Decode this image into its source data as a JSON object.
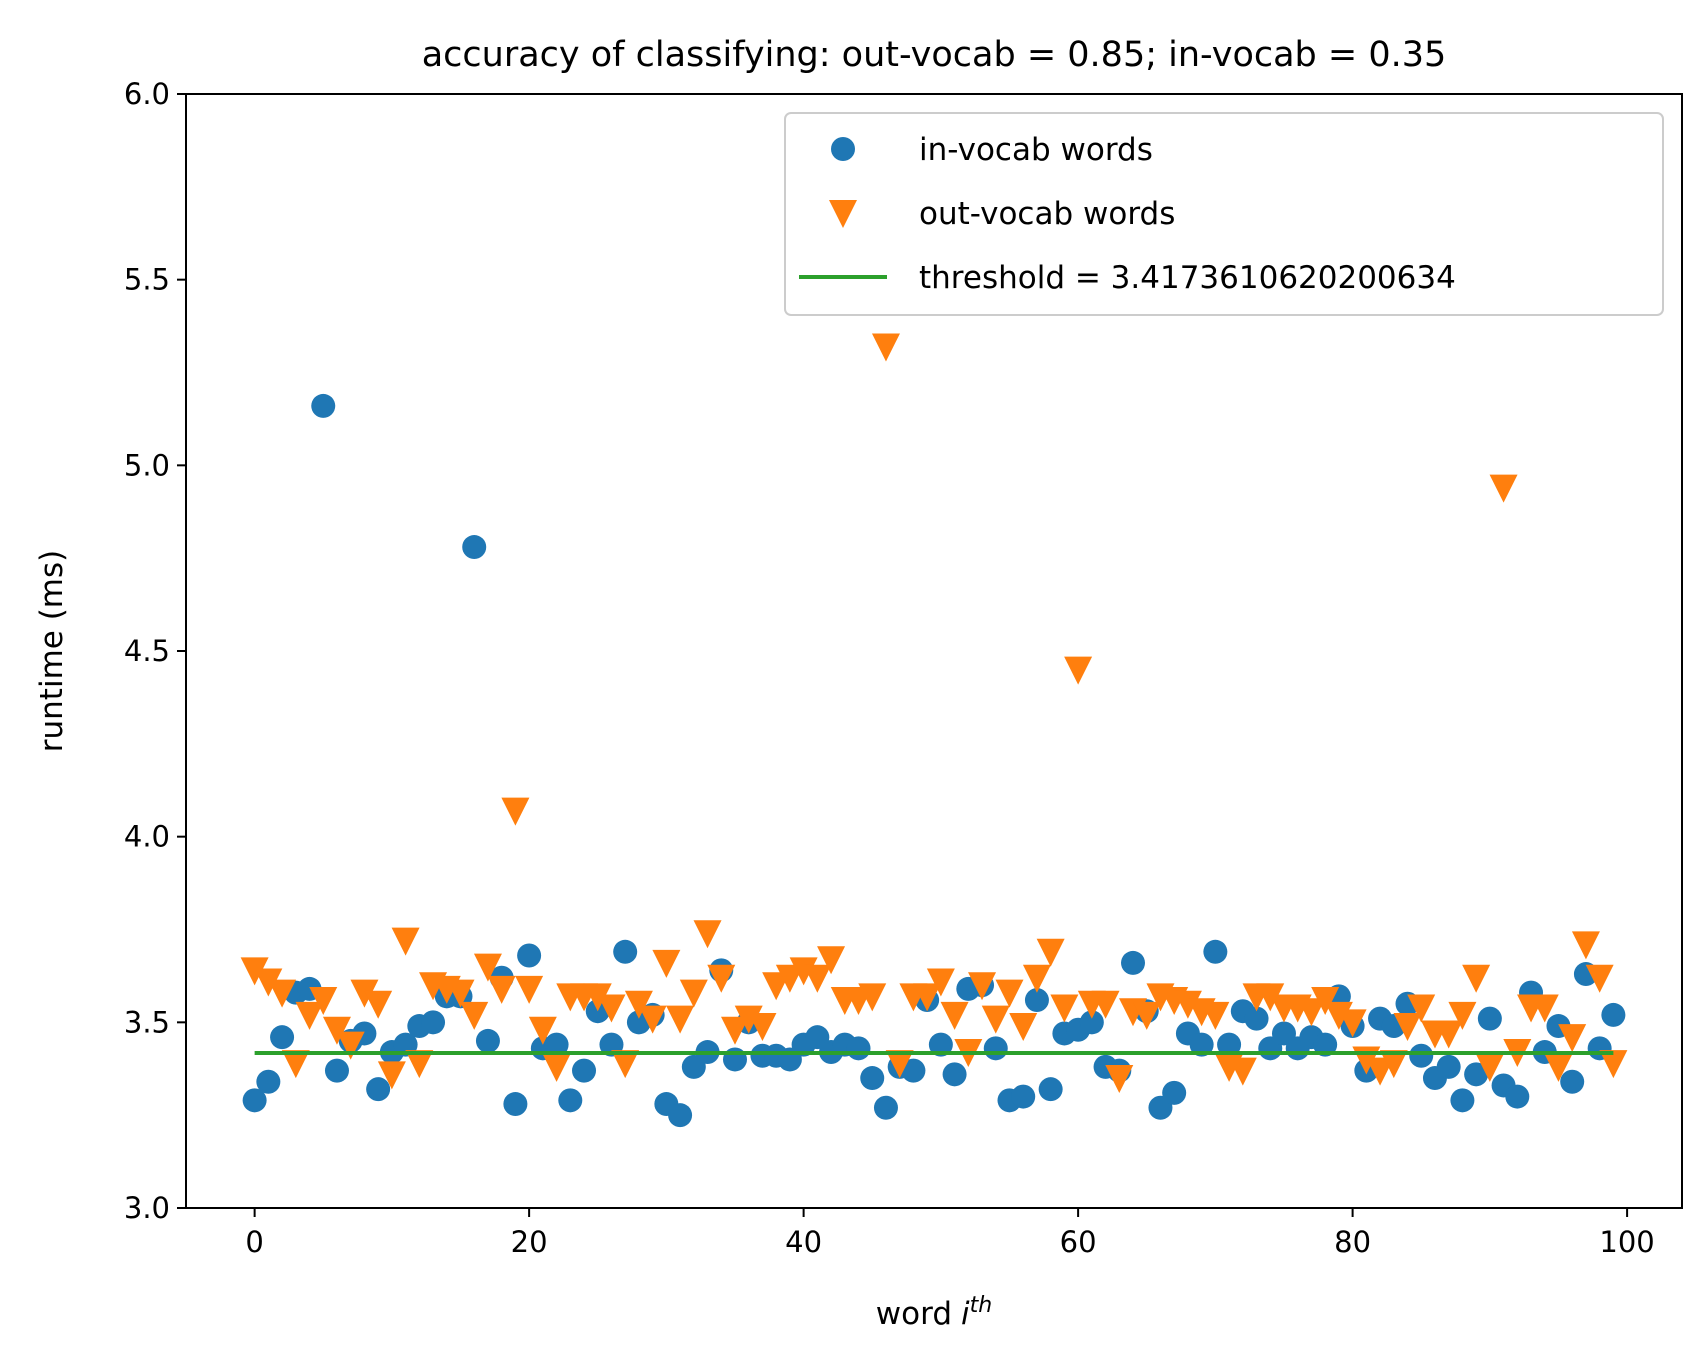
{
  "chart_data": {
    "type": "scatter",
    "title": "accuracy of classifying: out-vocab = 0.85; in-vocab = 0.35",
    "xlabel": {
      "word": "word",
      "var": "i",
      "sup": "th"
    },
    "ylabel": "runtime (ms)",
    "xlim": [
      -5,
      104
    ],
    "ylim": [
      3.0,
      6.0
    ],
    "xticks": [
      0,
      20,
      40,
      60,
      80,
      100
    ],
    "xtick_labels": [
      "0",
      "20",
      "40",
      "60",
      "80",
      "100"
    ],
    "yticks": [
      3.0,
      3.5,
      4.0,
      4.5,
      5.0,
      5.5,
      6.0
    ],
    "ytick_labels": [
      "3.0",
      "3.5",
      "4.0",
      "4.5",
      "5.0",
      "5.5",
      "6.0"
    ],
    "grid": false,
    "legend_position": "top-right",
    "series": [
      {
        "name": "in-vocab words",
        "marker": "circle",
        "color": "#1f77b4",
        "x": [
          0,
          1,
          2,
          3,
          4,
          5,
          6,
          7,
          8,
          9,
          10,
          11,
          12,
          13,
          14,
          15,
          16,
          17,
          18,
          19,
          20,
          21,
          22,
          23,
          24,
          25,
          26,
          27,
          28,
          29,
          30,
          31,
          32,
          33,
          34,
          35,
          36,
          37,
          38,
          39,
          40,
          41,
          42,
          43,
          44,
          45,
          46,
          47,
          48,
          49,
          50,
          51,
          52,
          53,
          54,
          55,
          56,
          57,
          58,
          59,
          60,
          61,
          62,
          63,
          64,
          65,
          66,
          67,
          68,
          69,
          70,
          71,
          72,
          73,
          74,
          75,
          76,
          77,
          78,
          79,
          80,
          81,
          82,
          83,
          84,
          85,
          86,
          87,
          88,
          89,
          90,
          91,
          92,
          93,
          94,
          95,
          96,
          97,
          98,
          99
        ],
        "y": [
          3.29,
          3.34,
          3.46,
          3.58,
          3.59,
          5.16,
          3.37,
          3.45,
          3.47,
          3.32,
          3.42,
          3.44,
          3.49,
          3.5,
          3.57,
          3.57,
          4.78,
          3.45,
          3.62,
          3.28,
          3.68,
          3.43,
          3.44,
          3.29,
          3.37,
          3.53,
          3.44,
          3.69,
          3.5,
          3.52,
          3.28,
          3.25,
          3.38,
          3.42,
          3.64,
          3.4,
          3.5,
          3.41,
          3.41,
          3.4,
          3.44,
          3.46,
          3.42,
          3.44,
          3.43,
          3.35,
          3.27,
          3.38,
          3.37,
          3.56,
          3.44,
          3.36,
          3.59,
          3.6,
          3.43,
          3.29,
          3.3,
          3.56,
          3.32,
          3.47,
          3.48,
          3.5,
          3.38,
          3.37,
          3.66,
          3.53,
          3.27,
          3.31,
          3.47,
          3.44,
          3.69,
          3.44,
          3.53,
          3.51,
          3.43,
          3.47,
          3.43,
          3.46,
          3.44,
          3.57,
          3.49,
          3.37,
          3.51,
          3.49,
          3.55,
          3.41,
          3.35,
          3.38,
          3.29,
          3.36,
          3.51,
          3.33,
          3.3,
          3.58,
          3.42,
          3.49,
          3.34,
          3.63,
          3.43,
          3.52
        ]
      },
      {
        "name": "out-vocab words",
        "marker": "triangle-down",
        "color": "#ff7f0e",
        "x": [
          0,
          1,
          2,
          3,
          4,
          5,
          6,
          7,
          8,
          9,
          10,
          11,
          12,
          13,
          14,
          15,
          16,
          17,
          18,
          19,
          20,
          21,
          22,
          23,
          24,
          25,
          26,
          27,
          28,
          29,
          30,
          31,
          32,
          33,
          34,
          35,
          36,
          37,
          38,
          39,
          40,
          41,
          42,
          43,
          44,
          45,
          46,
          47,
          48,
          49,
          50,
          51,
          52,
          53,
          54,
          55,
          56,
          57,
          58,
          59,
          60,
          61,
          62,
          63,
          64,
          65,
          66,
          67,
          68,
          69,
          70,
          71,
          72,
          73,
          74,
          75,
          76,
          77,
          78,
          79,
          80,
          81,
          82,
          83,
          84,
          85,
          86,
          87,
          88,
          89,
          90,
          91,
          92,
          93,
          94,
          95,
          96,
          97,
          98,
          99
        ],
        "y": [
          3.64,
          3.61,
          3.58,
          3.39,
          3.52,
          3.56,
          3.48,
          3.44,
          3.58,
          3.55,
          3.36,
          3.72,
          3.39,
          3.6,
          3.59,
          3.58,
          3.52,
          3.65,
          3.59,
          4.07,
          3.59,
          3.48,
          3.38,
          3.57,
          3.57,
          3.57,
          3.54,
          3.39,
          3.55,
          3.51,
          3.66,
          3.51,
          3.58,
          3.74,
          3.62,
          3.48,
          3.51,
          3.49,
          3.6,
          3.62,
          3.64,
          3.62,
          3.67,
          3.56,
          3.56,
          3.57,
          5.32,
          3.39,
          3.57,
          3.57,
          3.61,
          3.52,
          3.42,
          3.6,
          3.51,
          3.58,
          3.49,
          3.62,
          3.69,
          3.54,
          4.45,
          3.55,
          3.55,
          3.35,
          3.53,
          3.52,
          3.57,
          3.56,
          3.55,
          3.53,
          3.52,
          3.38,
          3.37,
          3.57,
          3.57,
          3.54,
          3.54,
          3.53,
          3.56,
          3.52,
          3.5,
          3.4,
          3.37,
          3.39,
          3.49,
          3.54,
          3.47,
          3.47,
          3.52,
          3.62,
          3.38,
          4.94,
          3.42,
          3.54,
          3.54,
          3.38,
          3.46,
          3.71,
          3.62,
          3.39
        ]
      },
      {
        "name": "threshold = 3.4173610620200634",
        "marker": "line",
        "color": "#2ca02c",
        "x": [
          0,
          99
        ],
        "y": [
          3.4173610620200634,
          3.4173610620200634
        ]
      }
    ]
  }
}
